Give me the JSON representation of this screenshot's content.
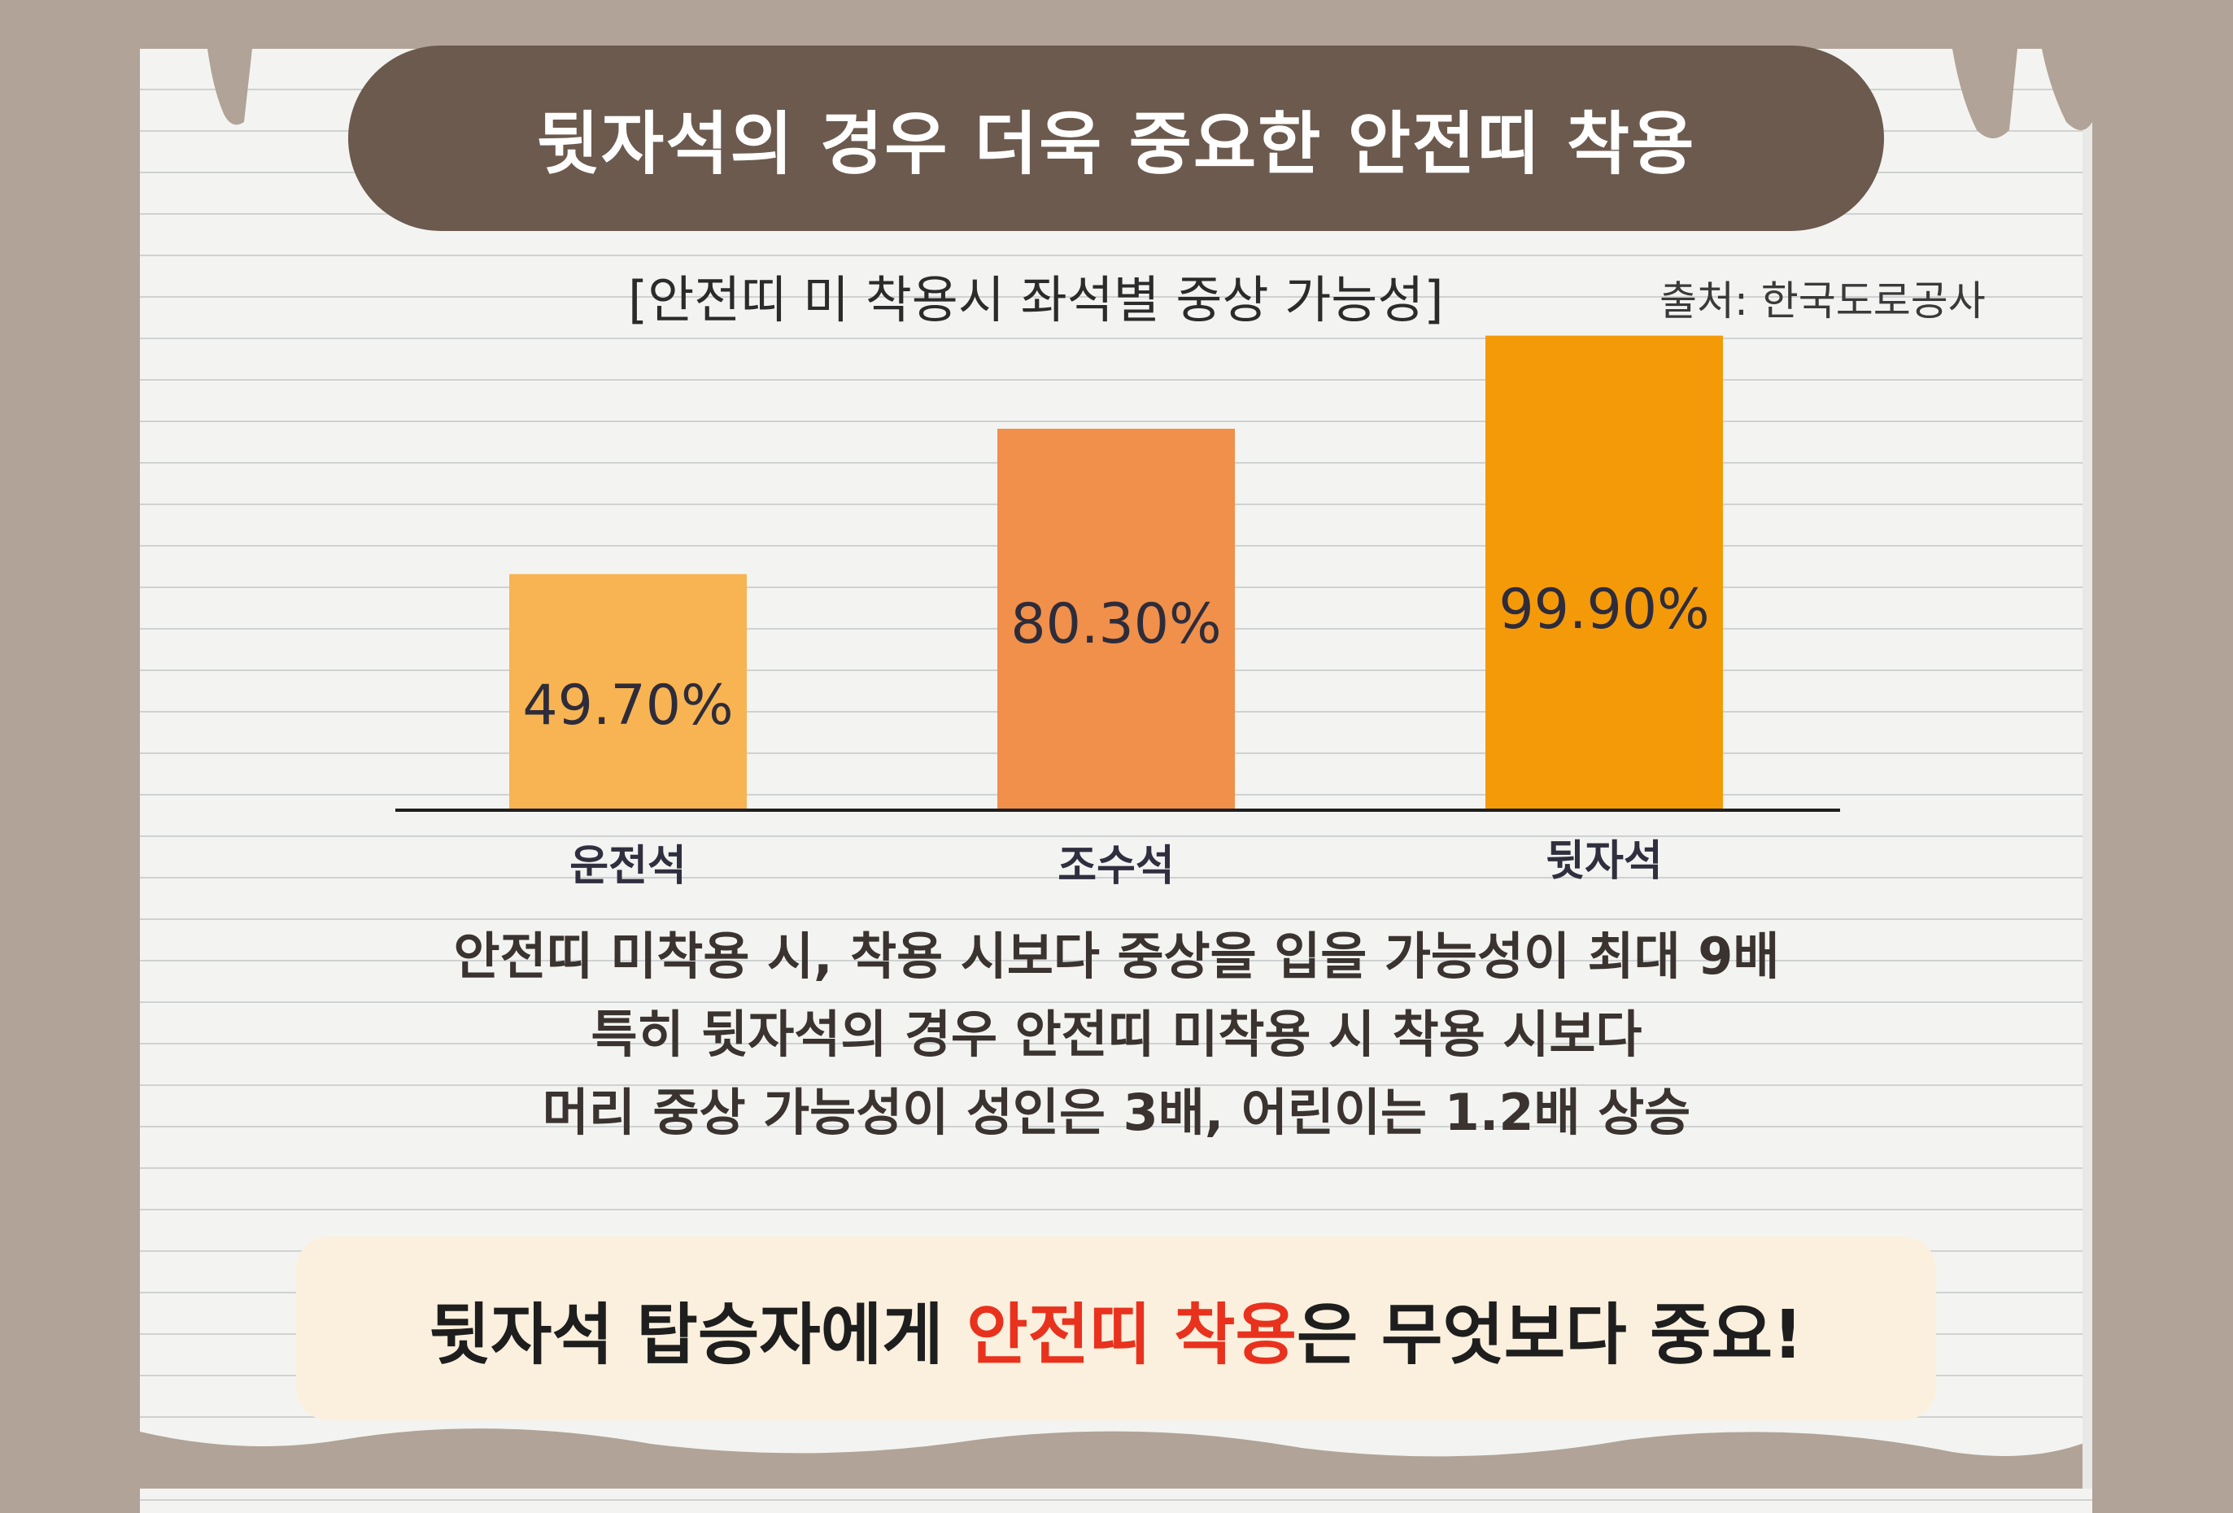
{
  "title": "뒷자석의 경우 더욱 중요한 안전띠 착용",
  "subtitle": "[안전띠 미 착용시 좌석별 중상 가능성]",
  "source": "출처: 한국도로공사",
  "chart_data": {
    "type": "bar",
    "title": "[안전띠 미 착용시 좌석별 중상 가능성]",
    "categories": [
      "운전석",
      "조수석",
      "뒷자석"
    ],
    "values": [
      49.7,
      80.3,
      99.9
    ],
    "value_labels": [
      "49.70%",
      "80.30%",
      "99.90%"
    ],
    "colors": [
      "#f8b452",
      "#f0904a",
      "#f49a09"
    ],
    "ylim": [
      0,
      100
    ],
    "grid": false,
    "legend": "none"
  },
  "description": {
    "lines": [
      "안전띠 미착용 시, 착용 시보다 중상을 입을 가능성이 최대 9배",
      "특히 뒷자석의 경우 안전띠 미착용 시 착용 시보다",
      "머리 중상 가능성이 성인은 3배, 어린이는 1.2배 상승"
    ]
  },
  "callout": {
    "prefix": "뒷자석 탑승자에게 ",
    "accent": "안전띠 착용",
    "suffix": "은 무엇보다 중요!",
    "accent_color": "#e8321e"
  }
}
